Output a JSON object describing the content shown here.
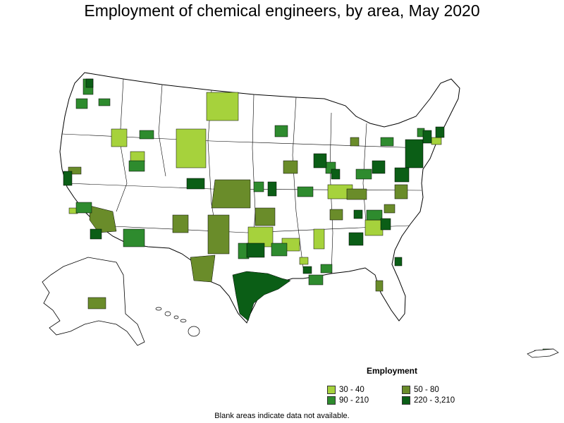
{
  "title": "Employment of chemical engineers, by area, May 2020",
  "legend": {
    "title": "Employment",
    "items": [
      {
        "label": "30 - 40",
        "color": "#a6d23c"
      },
      {
        "label": "50 - 80",
        "color": "#6a8c2a"
      },
      {
        "label": "90 - 210",
        "color": "#2e8b2e"
      },
      {
        "label": "220 - 3,210",
        "color": "#0b5e16"
      }
    ]
  },
  "footnote": "Blank areas indicate data not available.",
  "colors": {
    "outline": "#000000",
    "background": "#ffffff",
    "no_data": "#ffffff"
  }
}
